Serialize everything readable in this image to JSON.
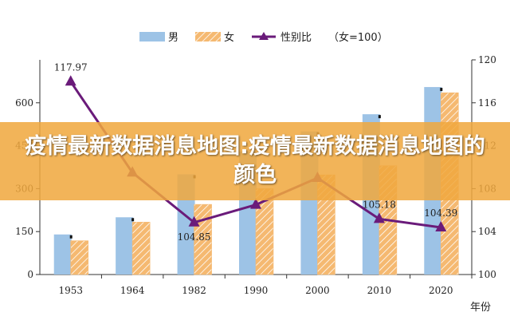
{
  "banner": {
    "title": "疫情最新数据消息地图:疫情最新数据消息地图的颜色"
  },
  "colors": {
    "male": "#9dc3e6",
    "female": "#f5b971",
    "female_stripe": "#ffffff",
    "ratio": "#6a1b7a",
    "axis": "#333333"
  },
  "chart_data": {
    "type": "bar",
    "categories": [
      "1953",
      "1964",
      "1982",
      "1990",
      "2000",
      "2010",
      "2020"
    ],
    "series": [
      {
        "name": "男",
        "values": [
          140,
          200,
          350,
          430,
          500,
          560,
          655
        ]
      },
      {
        "name": "女",
        "values": [
          118,
          183,
          245,
          300,
          348,
          380,
          635
        ]
      }
    ],
    "line_series": {
      "name": "性别比",
      "values": [
        117.97,
        109.5,
        104.85,
        106.5,
        109.0,
        105.18,
        104.39
      ]
    },
    "legend_note": "（女=100）",
    "data_labels": [
      {
        "index": 0,
        "text": "117.97"
      },
      {
        "index": 2,
        "text": "104.85"
      },
      {
        "index": 5,
        "text": "105.18"
      },
      {
        "index": 6,
        "text": "104.39"
      }
    ],
    "y_left": {
      "ylim": [
        0,
        750
      ],
      "ticks": [
        "0",
        "150",
        "300",
        "450",
        "600"
      ]
    },
    "y_right": {
      "ylim": [
        100,
        120
      ],
      "ticks": [
        "100",
        "104",
        "108",
        "112",
        "116",
        "120"
      ]
    },
    "xlabel": "年份",
    "legend_position": "top"
  }
}
